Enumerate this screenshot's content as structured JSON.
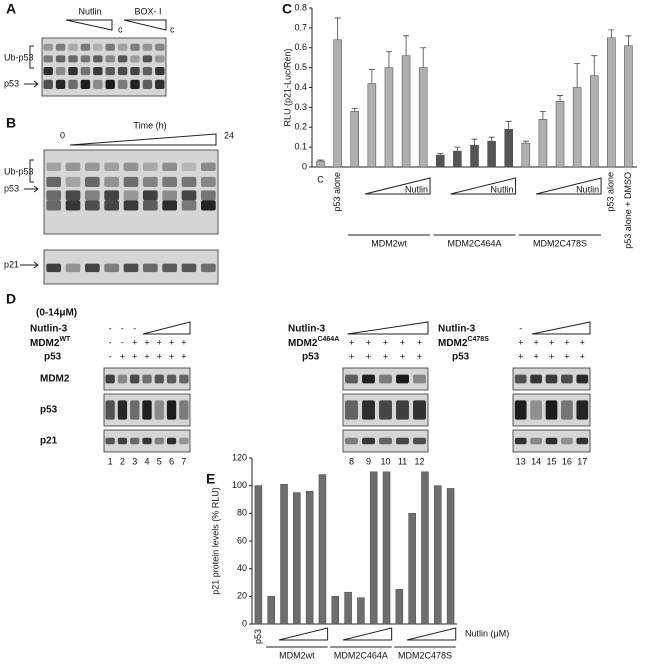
{
  "figure": {
    "panel_a": {
      "letter": "A",
      "nutlin": "Nutlin",
      "box": "BOX- I",
      "c1": "c",
      "c2": "c",
      "ub": "Ub-p53",
      "p53": "p53"
    },
    "panel_b": {
      "letter": "B",
      "time": "Time (h)",
      "start": "0",
      "end": "24",
      "ub": "Ub-p53",
      "p53": "p53",
      "p21": "p21"
    },
    "panel_c": {
      "letter": "C"
    },
    "panel_d": {
      "letter": "D",
      "dose": "(0-14μM)",
      "rows": [
        "MDM2",
        "p53",
        "p21"
      ],
      "groups": [
        {
          "nutlin": "Nutlin-3",
          "mdm2": "MDM2",
          "mdm2_sup": "WT",
          "p53": "p53",
          "nutlin_signs": [
            "-",
            "-",
            "-"
          ],
          "mdm2_signs": [
            "-",
            "-",
            "+",
            "+",
            "+",
            "+",
            "+"
          ],
          "p53_signs": [
            "-",
            "+",
            "+",
            "+",
            "+",
            "+",
            "+"
          ],
          "lanes": [
            "1",
            "2",
            "3",
            "4",
            "5",
            "6",
            "7"
          ]
        },
        {
          "nutlin": "Nutlin-3",
          "mdm2": "MDM2",
          "mdm2_sup": "C464A",
          "p53": "p53",
          "nutlin_signs": [],
          "mdm2_signs": [
            "+",
            "+",
            "+",
            "+",
            "+"
          ],
          "p53_signs": [
            "+",
            "+",
            "+",
            "+",
            "+"
          ],
          "lanes": [
            "8",
            "9",
            "10",
            "11",
            "12"
          ]
        },
        {
          "nutlin": "Nutlin-3",
          "mdm2": "MDM2",
          "mdm2_sup": "C478S",
          "p53": "p53",
          "nutlin_signs": [
            "-"
          ],
          "mdm2_signs": [
            "+",
            "+",
            "+",
            "+",
            "+"
          ],
          "p53_signs": [
            "+",
            "+",
            "+",
            "+",
            "+"
          ],
          "lanes": [
            "13",
            "14",
            "15",
            "16",
            "17"
          ]
        }
      ]
    },
    "panel_e": {
      "letter": "E"
    }
  },
  "chart_data": [
    {
      "type": "bar",
      "ylabel": "RLU (p21-Luc/Ren)",
      "categories": [
        "C",
        "p53 alone",
        null,
        null,
        null,
        null,
        null,
        null,
        null,
        null,
        null,
        null,
        null,
        null,
        null,
        null,
        null,
        "p53 alone",
        "p53 alone + DMSO"
      ],
      "values": [
        0.03,
        0.64,
        0.28,
        0.42,
        0.5,
        0.56,
        0.5,
        0.06,
        0.08,
        0.11,
        0.13,
        0.19,
        0.12,
        0.24,
        0.33,
        0.4,
        0.46,
        0.65,
        0.61
      ],
      "errors": [
        0.005,
        0.11,
        0.015,
        0.07,
        0.08,
        0.1,
        0.1,
        0.008,
        0.02,
        0.03,
        0.02,
        0.04,
        0.01,
        0.04,
        0.03,
        0.12,
        0.1,
        0.04,
        0.05
      ],
      "colors": [
        "#b0b0b0",
        "#b0b0b0",
        "#b0b0b0",
        "#b0b0b0",
        "#b0b0b0",
        "#b0b0b0",
        "#b0b0b0",
        "#555555",
        "#555555",
        "#555555",
        "#555555",
        "#555555",
        "#b0b0b0",
        "#b0b0b0",
        "#b0b0b0",
        "#b0b0b0",
        "#b0b0b0",
        "#b0b0b0",
        "#b0b0b0"
      ],
      "ylim": [
        0,
        0.8
      ],
      "yticks": [
        0,
        0.1,
        0.2,
        0.3,
        0.4,
        0.5,
        0.6,
        0.7,
        0.8
      ],
      "group_labels": [
        "MDM2wt",
        "MDM2C464A",
        "MDM2C478S"
      ],
      "triangle_label": "Nutlin"
    },
    {
      "type": "bar",
      "ylabel": "p21 protein levels (% RLU)",
      "categories": [
        "p53",
        null,
        null,
        null,
        null,
        null,
        null,
        null,
        null,
        null,
        null,
        null,
        null,
        null,
        null,
        null
      ],
      "values": [
        100,
        20,
        101,
        95,
        96,
        108,
        20,
        23,
        19,
        110,
        110,
        25,
        80,
        110,
        100,
        98
      ],
      "color": "#6e6e6e",
      "ylim": [
        0,
        120
      ],
      "yticks": [
        0,
        20,
        40,
        60,
        80,
        100,
        120
      ],
      "group_labels": [
        "MDM2wt",
        "MDM2C464A",
        "MDM2C478S"
      ],
      "axis_note": "Nutlin (μM)"
    }
  ]
}
